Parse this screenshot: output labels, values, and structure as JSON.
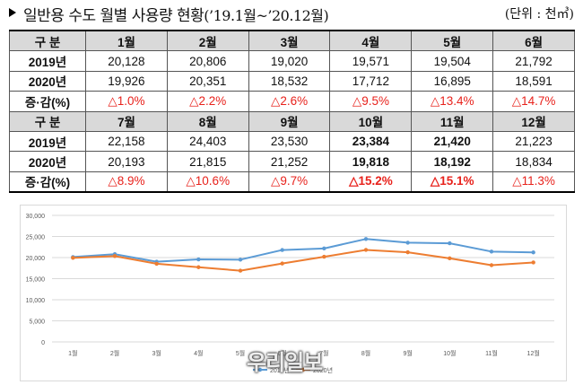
{
  "header": {
    "title_main": "일반용 수도 월별 사용량 현황",
    "title_sub": "(’19.1월~’20.12월)",
    "unit": "(단위 : 천㎥)"
  },
  "table": {
    "rows": [
      {
        "cells": [
          "구 분",
          "1월",
          "2월",
          "3월",
          "4월",
          "5월",
          "6월"
        ],
        "kind": "head"
      },
      {
        "cells": [
          "2019년",
          "20,128",
          "20,806",
          "19,020",
          "19,571",
          "19,504",
          "21,792"
        ],
        "kind": "data"
      },
      {
        "cells": [
          "2020년",
          "19,926",
          "20,351",
          "18,532",
          "17,712",
          "16,895",
          "18,591"
        ],
        "kind": "data"
      },
      {
        "cells": [
          "증·감(%)",
          "△1.0%",
          "△2.2%",
          "△2.6%",
          "△9.5%",
          "△13.4%",
          "△14.7%"
        ],
        "kind": "change"
      },
      {
        "cells": [
          "구 분",
          "7월",
          "8월",
          "9월",
          "10월",
          "11월",
          "12월"
        ],
        "kind": "head"
      },
      {
        "cells": [
          "2019년",
          "22,158",
          "24,403",
          "23,530",
          "23,384",
          "21,420",
          "21,223"
        ],
        "kind": "data",
        "bold_cols": [
          4,
          5
        ]
      },
      {
        "cells": [
          "2020년",
          "20,193",
          "21,815",
          "21,252",
          "19,818",
          "18,192",
          "18,834"
        ],
        "kind": "data",
        "bold_cols": [
          4,
          5
        ]
      },
      {
        "cells": [
          "증·감(%)",
          "△8.9%",
          "△10.6%",
          "△9.7%",
          "△15.2%",
          "△15.1%",
          "△11.3%"
        ],
        "kind": "change",
        "bold_cols": [
          4,
          5
        ]
      }
    ]
  },
  "chart_data": {
    "type": "line",
    "categories": [
      "1월",
      "2월",
      "3월",
      "4월",
      "5월",
      "6월",
      "7월",
      "8월",
      "9월",
      "10월",
      "11월",
      "12월"
    ],
    "series": [
      {
        "name": "2019년",
        "color": "#5b9bd5",
        "values": [
          20128,
          20806,
          19020,
          19571,
          19504,
          21792,
          22158,
          24403,
          23530,
          23384,
          21420,
          21223
        ]
      },
      {
        "name": "2020년",
        "color": "#ed7d31",
        "values": [
          19926,
          20351,
          18532,
          17712,
          16895,
          18591,
          20193,
          21815,
          21252,
          19818,
          18192,
          18834
        ]
      }
    ],
    "ylim": [
      0,
      30000
    ],
    "yticks": [
      "0",
      "5,000",
      "10,000",
      "15,000",
      "20,000",
      "25,000",
      "30,000"
    ],
    "grid": true,
    "legend": "bottom"
  },
  "watermark": "우리일보",
  "colors": {
    "decrease": "#e8221c",
    "header_bg": "#d9d9d9"
  }
}
